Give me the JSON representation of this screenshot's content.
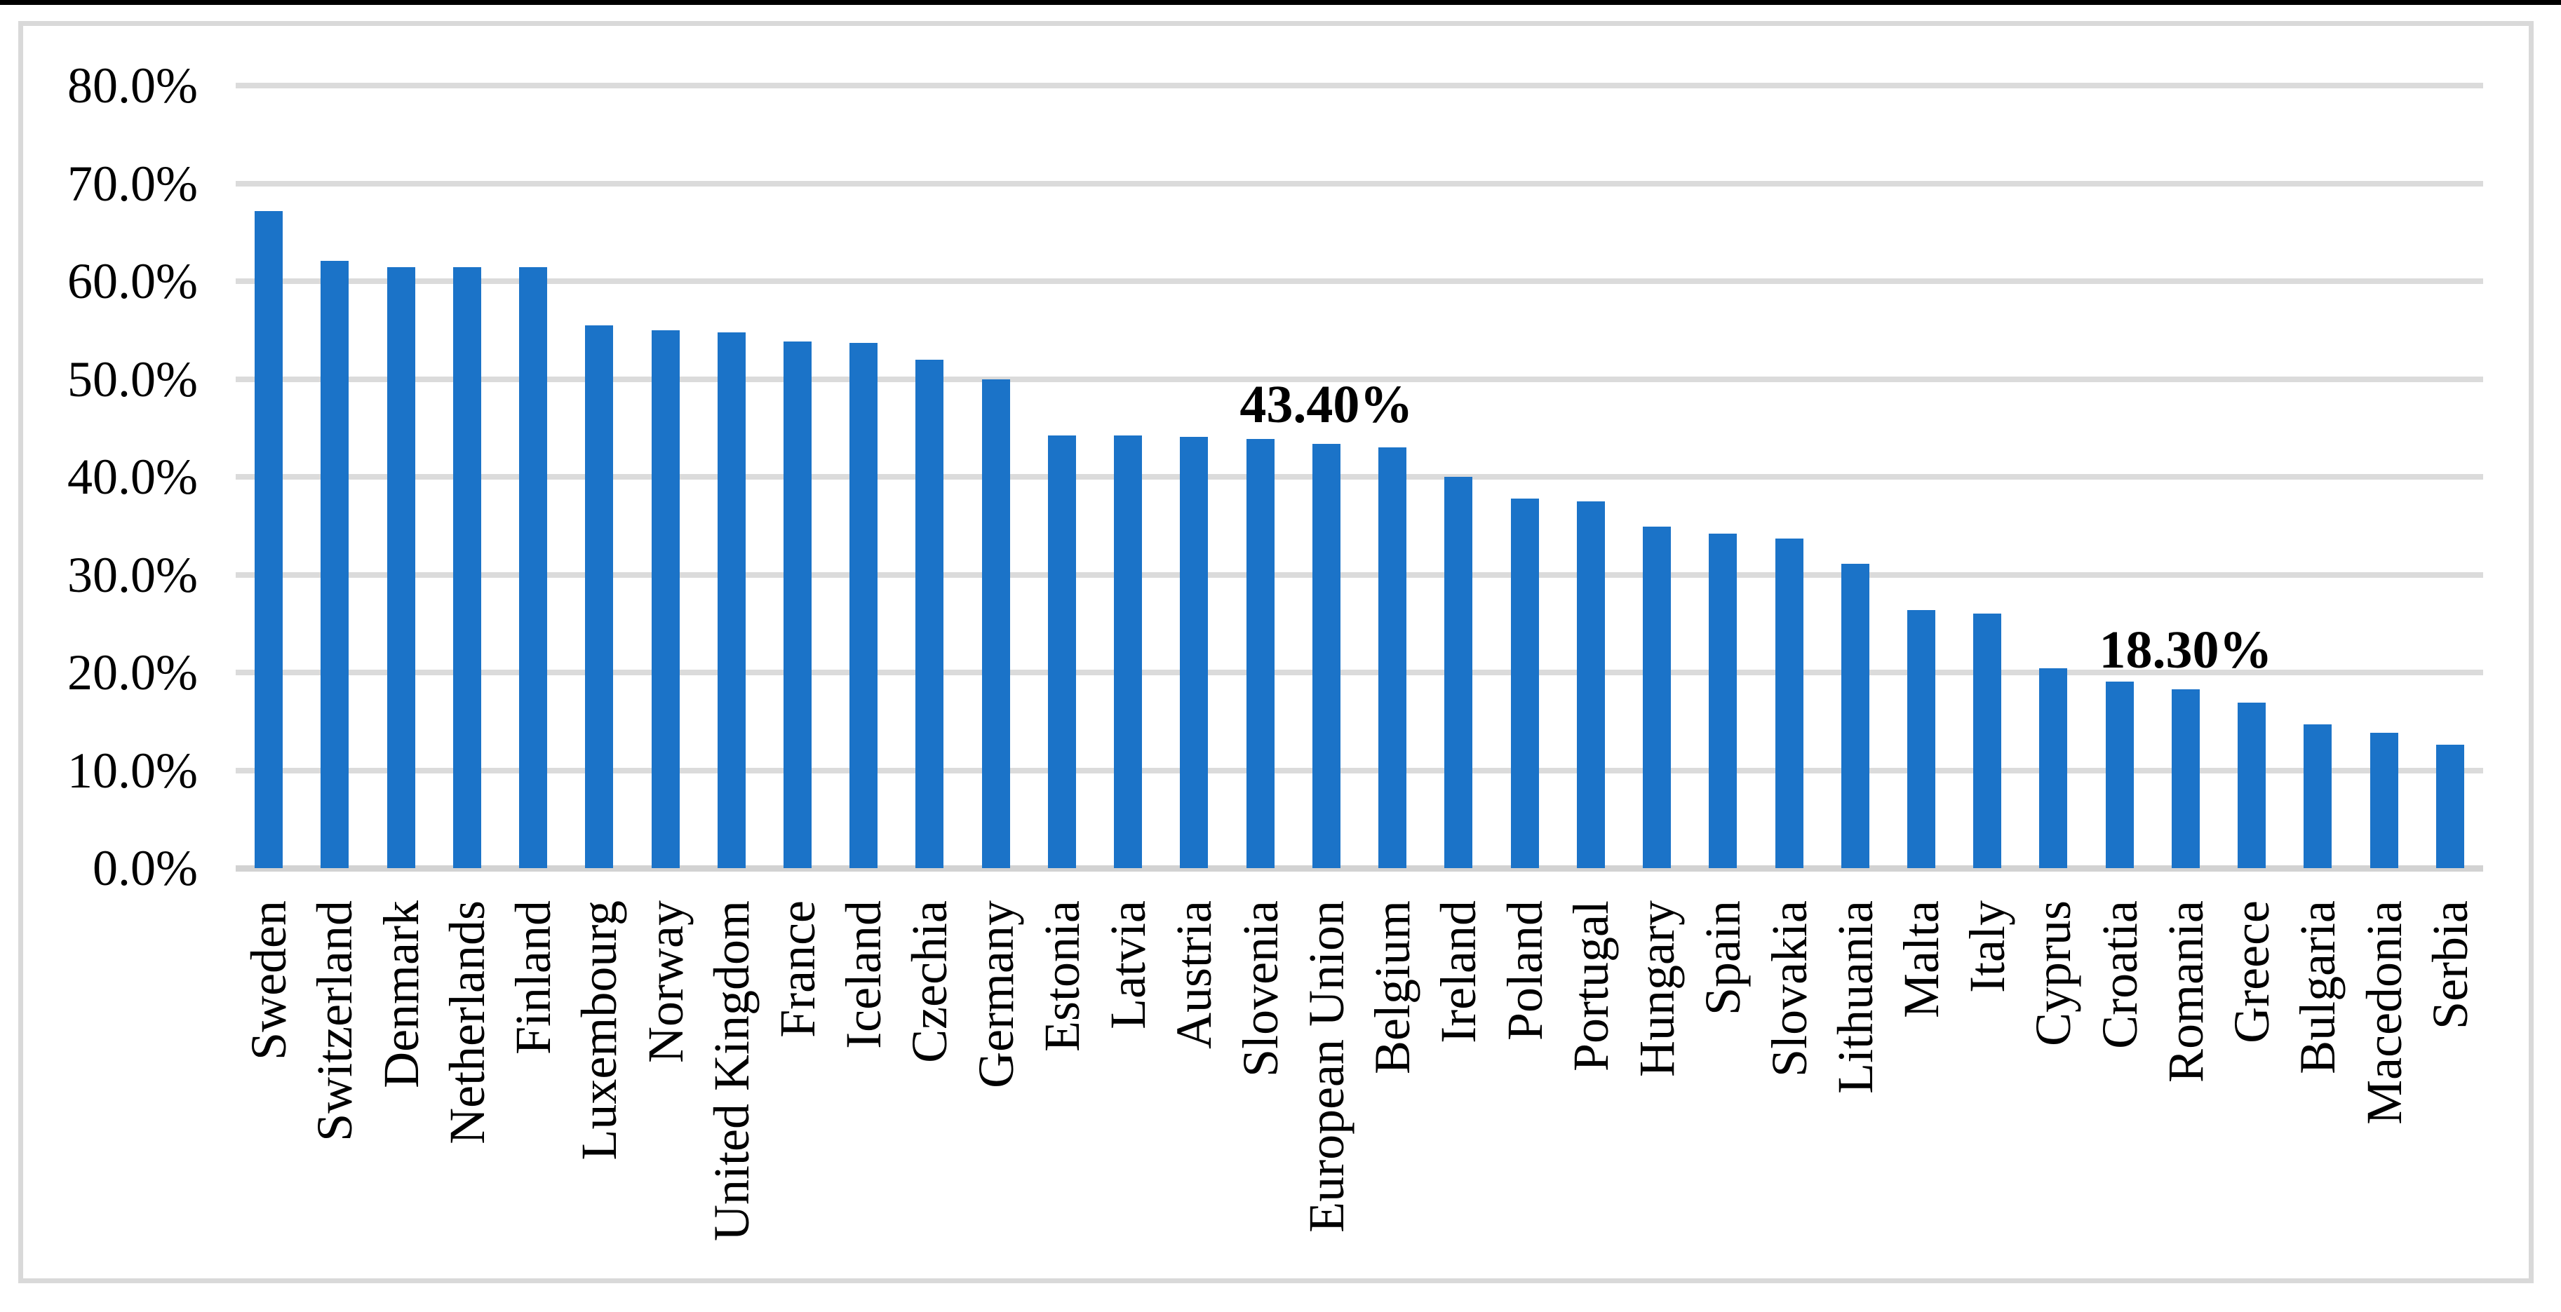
{
  "chart_data": {
    "type": "bar",
    "title": "",
    "xlabel": "",
    "ylabel": "",
    "ylim": [
      0,
      80
    ],
    "grid": true,
    "legend": false,
    "y_tick_labels": [
      "80.0%",
      "70.0%",
      "60.0%",
      "50.0%",
      "40.0%",
      "30.0%",
      "20.0%",
      "10.0%",
      "0.0%"
    ],
    "categories": [
      "Sweden",
      "Switzerland",
      "Denmark",
      "Netherlands",
      "Finland",
      "Luxembourg",
      "Norway",
      "United Kingdom",
      "France",
      "Iceland",
      "Czechia",
      "Germany",
      "Estonia",
      "Latvia",
      "Austria",
      "Slovenia",
      "European Union",
      "Belgium",
      "Ireland",
      "Poland",
      "Portugal",
      "Hungary",
      "Spain",
      "Slovakia",
      "Lithuania",
      "Malta",
      "Italy",
      "Cyprus",
      "Croatia",
      "Romania",
      "Greece",
      "Bulgaria",
      "Macedonia",
      "Serbia"
    ],
    "values": [
      67.2,
      62.1,
      61.4,
      61.4,
      61.4,
      55.5,
      55.0,
      54.8,
      53.8,
      53.7,
      52.0,
      50.0,
      44.2,
      44.2,
      44.1,
      43.9,
      43.4,
      43.0,
      40.0,
      37.8,
      37.5,
      34.9,
      34.2,
      33.7,
      31.1,
      26.4,
      26.0,
      20.4,
      19.1,
      18.3,
      16.9,
      14.7,
      13.8,
      12.6
    ],
    "point_labels": [
      "",
      "",
      "",
      "",
      "",
      "",
      "",
      "",
      "",
      "",
      "",
      "",
      "",
      "",
      "",
      "",
      "43.40%",
      "",
      "",
      "",
      "",
      "",
      "",
      "",
      "",
      "",
      "",
      "",
      "",
      "18.30%",
      "",
      "",
      "",
      ""
    ],
    "colors": {
      "bar": "#1B73C8",
      "gridline": "#DBDBDB",
      "axis_line": "#D2D2D2",
      "frame_border": "#D9D9D9",
      "top_rule": "#000000",
      "text": "#000000"
    }
  }
}
